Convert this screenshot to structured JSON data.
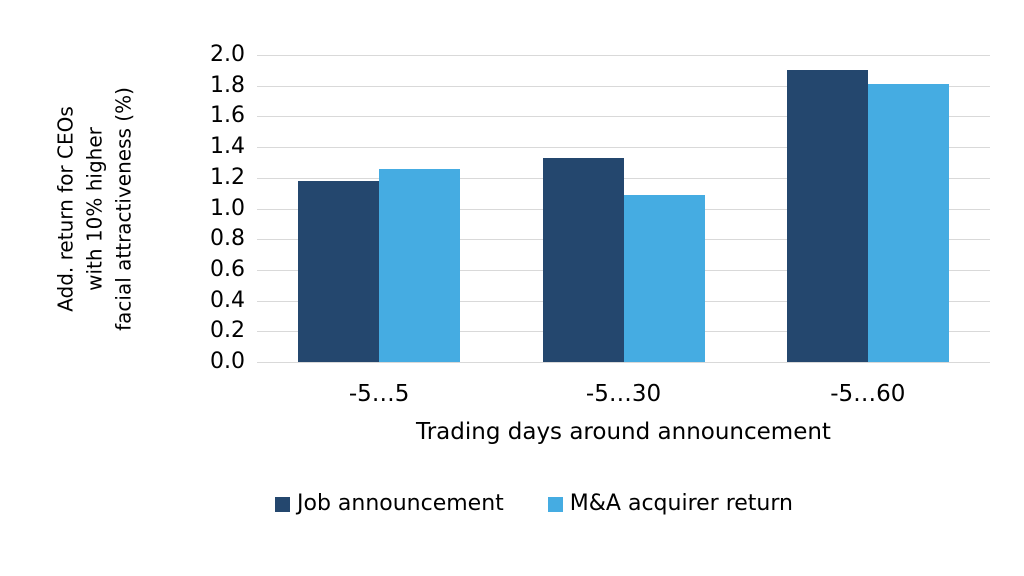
{
  "chart_data": {
    "type": "bar",
    "title": "",
    "xlabel": "Trading days around announcement",
    "ylabel": "Add. return for CEOs with 10% higher facial attractiveness (%)",
    "ylabel_lines": [
      "Add. return for CEOs",
      "with 10% higher",
      "facial attractiveness (%)"
    ],
    "categories": [
      "-5…5",
      "-5…30",
      "-5…60"
    ],
    "series": [
      {
        "name": "Job announcement",
        "color": "#24476E",
        "values": [
          1.18,
          1.33,
          1.9
        ]
      },
      {
        "name": "M&A acquirer return",
        "color": "#45ACE2",
        "values": [
          1.26,
          1.09,
          1.81
        ]
      }
    ],
    "ylim": [
      0,
      2.0
    ],
    "ytick_step": 0.2,
    "ytick_labels": [
      "0.0",
      "0.2",
      "0.4",
      "0.6",
      "0.8",
      "1.0",
      "1.2",
      "1.4",
      "1.6",
      "1.8",
      "2.0"
    ],
    "grid": true,
    "gridline_color": "#D9D9D9",
    "legend_position": "bottom",
    "text_color": "#000000",
    "background_color": "#FFFFFF"
  }
}
